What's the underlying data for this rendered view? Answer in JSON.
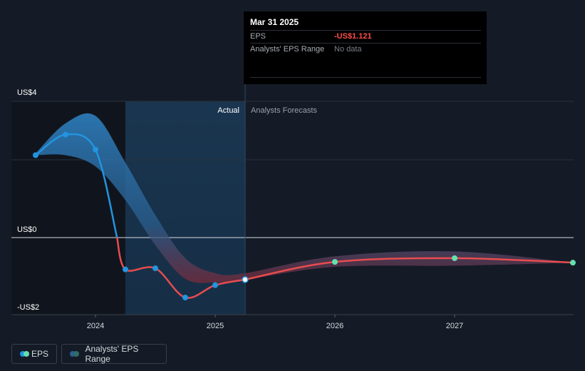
{
  "tooltip": {
    "date": "Mar 31 2025",
    "eps_label": "EPS",
    "eps_value": "-US$1.121",
    "range_label": "Analysts' EPS Range",
    "range_value": "No data"
  },
  "legend": {
    "eps_label": "EPS",
    "range_label": "Analysts' EPS Range"
  },
  "colors": {
    "background": "#151b26",
    "eps_line_actual": "#2394df",
    "eps_line_negative": "#e84c4f",
    "forecast_dot": "#64e0b0",
    "range_band": "#2f7fbf",
    "range_band_forecast": "#7a2a3a",
    "actual_shade": "#1a3a56"
  },
  "chart_data": {
    "type": "line",
    "title": "",
    "xlabel": "",
    "ylabel": "",
    "y_tick_labels": [
      "US$4",
      "US$0",
      "-US$2"
    ],
    "x_tick_labels": [
      "2024",
      "2025",
      "2026",
      "2027"
    ],
    "x_ticks": [
      2024,
      2025,
      2026,
      2027
    ],
    "xlim": [
      2023.3,
      2028.0
    ],
    "ylim": [
      -2.0,
      3.5
    ],
    "section_labels": {
      "actual": "Actual",
      "forecast": "Analysts Forecasts"
    },
    "actual_region": [
      2024.25,
      2025.25
    ],
    "series": [
      {
        "name": "EPS",
        "points": [
          {
            "x": 2023.5,
            "y": 2.2
          },
          {
            "x": 2023.75,
            "y": 2.75
          },
          {
            "x": 2024.0,
            "y": 2.35
          },
          {
            "x": 2024.25,
            "y": -0.85
          },
          {
            "x": 2024.5,
            "y": -0.82
          },
          {
            "x": 2024.75,
            "y": -1.6
          },
          {
            "x": 2025.0,
            "y": -1.27
          },
          {
            "x": 2025.25,
            "y": -1.121
          }
        ]
      },
      {
        "name": "EPS Forecast",
        "points": [
          {
            "x": 2025.25,
            "y": -1.121
          },
          {
            "x": 2026.0,
            "y": -0.65
          },
          {
            "x": 2027.0,
            "y": -0.55
          },
          {
            "x": 2028.0,
            "y": -0.67
          }
        ]
      }
    ],
    "range": {
      "name": "Analysts' EPS Range",
      "upper": [
        {
          "x": 2023.5,
          "y": 2.25
        },
        {
          "x": 2023.75,
          "y": 3.05
        },
        {
          "x": 2024.0,
          "y": 3.25
        },
        {
          "x": 2024.25,
          "y": 2.0
        },
        {
          "x": 2024.5,
          "y": 0.6
        },
        {
          "x": 2024.75,
          "y": -0.55
        },
        {
          "x": 2025.0,
          "y": -0.95
        },
        {
          "x": 2025.25,
          "y": -0.95
        },
        {
          "x": 2026.0,
          "y": -0.5
        },
        {
          "x": 2027.0,
          "y": -0.37
        },
        {
          "x": 2028.0,
          "y": -0.67
        }
      ],
      "lower": [
        {
          "x": 2023.5,
          "y": 2.2
        },
        {
          "x": 2023.75,
          "y": 2.2
        },
        {
          "x": 2024.0,
          "y": 1.9
        },
        {
          "x": 2024.25,
          "y": 1.0
        },
        {
          "x": 2024.5,
          "y": -0.2
        },
        {
          "x": 2024.75,
          "y": -1.1
        },
        {
          "x": 2025.0,
          "y": -1.2
        },
        {
          "x": 2025.25,
          "y": -1.12
        },
        {
          "x": 2026.0,
          "y": -0.78
        },
        {
          "x": 2027.0,
          "y": -0.75
        },
        {
          "x": 2028.0,
          "y": -0.67
        }
      ]
    },
    "highlight": {
      "x": 2025.25,
      "y": -1.121
    }
  }
}
